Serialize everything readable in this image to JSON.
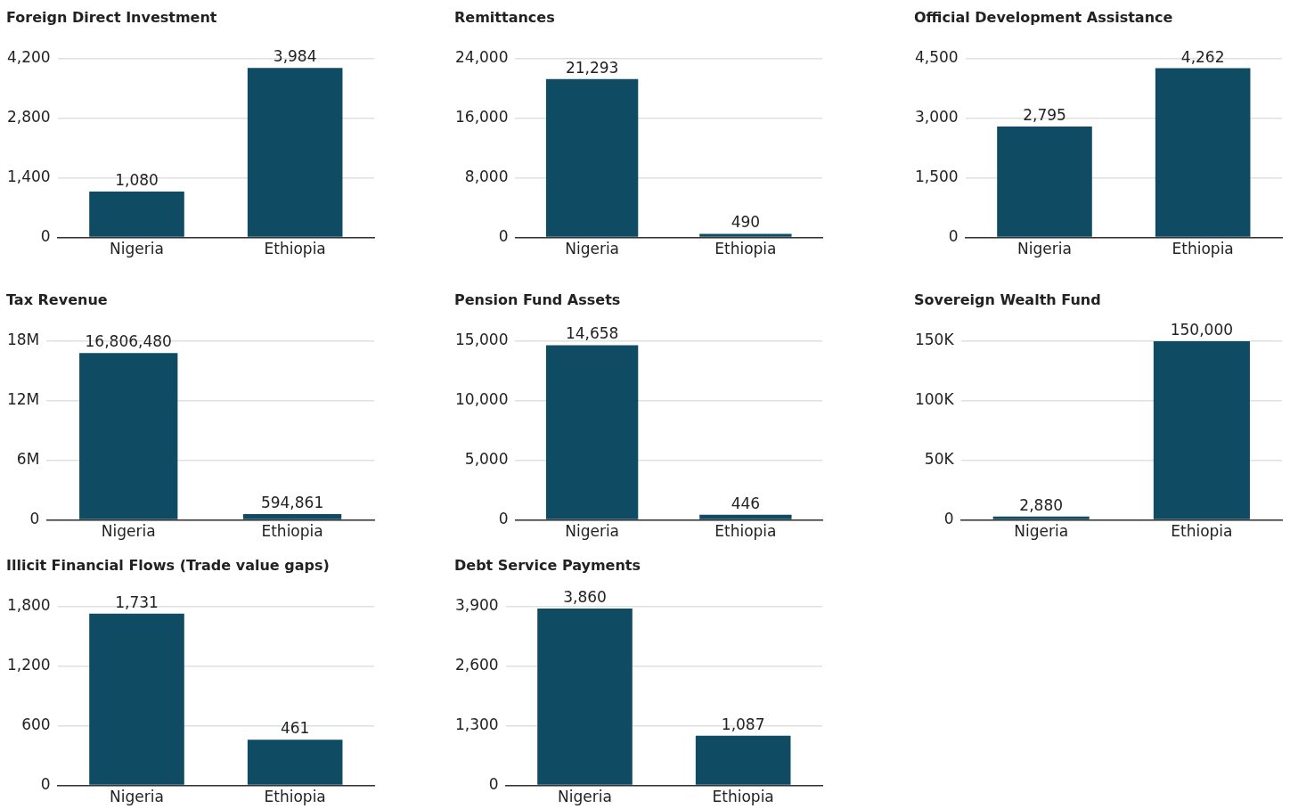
{
  "chart_data": [
    {
      "type": "bar",
      "title": "Foreign Direct Investment",
      "categories": [
        "Nigeria",
        "Ethiopia"
      ],
      "values": [
        1080,
        3984
      ],
      "value_labels": [
        "1,080",
        "3,984"
      ],
      "color": "#0f4c64",
      "ylim": [
        0,
        4200
      ],
      "yticks": [
        {
          "value": 0,
          "label": "0"
        },
        {
          "value": 1400,
          "label": "1,400"
        },
        {
          "value": 2800,
          "label": "2,800"
        },
        {
          "value": 4200,
          "label": "4,200"
        }
      ],
      "grid": "y"
    },
    {
      "type": "bar",
      "title": "Remittances",
      "categories": [
        "Nigeria",
        "Ethiopia"
      ],
      "values": [
        21293,
        490
      ],
      "value_labels": [
        "21,293",
        "490"
      ],
      "color": "#0f4c64",
      "ylim": [
        0,
        24000
      ],
      "yticks": [
        {
          "value": 0,
          "label": "0"
        },
        {
          "value": 8000,
          "label": "8,000"
        },
        {
          "value": 16000,
          "label": "16,000"
        },
        {
          "value": 24000,
          "label": "24,000"
        }
      ],
      "grid": "y"
    },
    {
      "type": "bar",
      "title": "Official Development Assistance",
      "categories": [
        "Nigeria",
        "Ethiopia"
      ],
      "values": [
        2795,
        4262
      ],
      "value_labels": [
        "2,795",
        "4,262"
      ],
      "color": "#0f4c64",
      "ylim": [
        0,
        4500
      ],
      "yticks": [
        {
          "value": 0,
          "label": "0"
        },
        {
          "value": 1500,
          "label": "1,500"
        },
        {
          "value": 3000,
          "label": "3,000"
        },
        {
          "value": 4500,
          "label": "4,500"
        }
      ],
      "grid": "y"
    },
    {
      "type": "bar",
      "title": "Tax Revenue",
      "categories": [
        "Nigeria",
        "Ethiopia"
      ],
      "values": [
        16806480,
        594861
      ],
      "value_labels": [
        "16,806,480",
        "594,861"
      ],
      "color": "#0f4c64",
      "ylim": [
        0,
        18000000
      ],
      "yticks": [
        {
          "value": 0,
          "label": "0"
        },
        {
          "value": 6000000,
          "label": "6M"
        },
        {
          "value": 12000000,
          "label": "12M"
        },
        {
          "value": 18000000,
          "label": "18M"
        }
      ],
      "grid": "y"
    },
    {
      "type": "bar",
      "title": "Pension Fund Assets",
      "categories": [
        "Nigeria",
        "Ethiopia"
      ],
      "values": [
        14658,
        446
      ],
      "value_labels": [
        "14,658",
        "446"
      ],
      "color": "#0f4c64",
      "ylim": [
        0,
        15000
      ],
      "yticks": [
        {
          "value": 0,
          "label": "0"
        },
        {
          "value": 5000,
          "label": "5,000"
        },
        {
          "value": 10000,
          "label": "10,000"
        },
        {
          "value": 15000,
          "label": "15,000"
        }
      ],
      "grid": "y"
    },
    {
      "type": "bar",
      "title": "Sovereign Wealth Fund",
      "categories": [
        "Nigeria",
        "Ethiopia"
      ],
      "values": [
        2880,
        150000
      ],
      "value_labels": [
        "2,880",
        "150,000"
      ],
      "color": "#0f4c64",
      "ylim": [
        0,
        150000
      ],
      "yticks": [
        {
          "value": 0,
          "label": "0"
        },
        {
          "value": 50000,
          "label": "50K"
        },
        {
          "value": 100000,
          "label": "100K"
        },
        {
          "value": 150000,
          "label": "150K"
        }
      ],
      "grid": "y"
    },
    {
      "type": "bar",
      "title": "Illicit Financial Flows (Trade value gaps)",
      "categories": [
        "Nigeria",
        "Ethiopia"
      ],
      "values": [
        1731,
        461
      ],
      "value_labels": [
        "1,731",
        "461"
      ],
      "color": "#0f4c64",
      "ylim": [
        0,
        1800
      ],
      "yticks": [
        {
          "value": 0,
          "label": "0"
        },
        {
          "value": 600,
          "label": "600"
        },
        {
          "value": 1200,
          "label": "1,200"
        },
        {
          "value": 1800,
          "label": "1,800"
        }
      ],
      "grid": "y"
    },
    {
      "type": "bar",
      "title": "Debt Service Payments",
      "categories": [
        "Nigeria",
        "Ethiopia"
      ],
      "values": [
        3860,
        1087
      ],
      "value_labels": [
        "3,860",
        "1,087"
      ],
      "color": "#0f4c64",
      "ylim": [
        0,
        3900
      ],
      "yticks": [
        {
          "value": 0,
          "label": "0"
        },
        {
          "value": 1300,
          "label": "1,300"
        },
        {
          "value": 2600,
          "label": "2,600"
        },
        {
          "value": 3900,
          "label": "3,900"
        }
      ],
      "grid": "y"
    }
  ]
}
